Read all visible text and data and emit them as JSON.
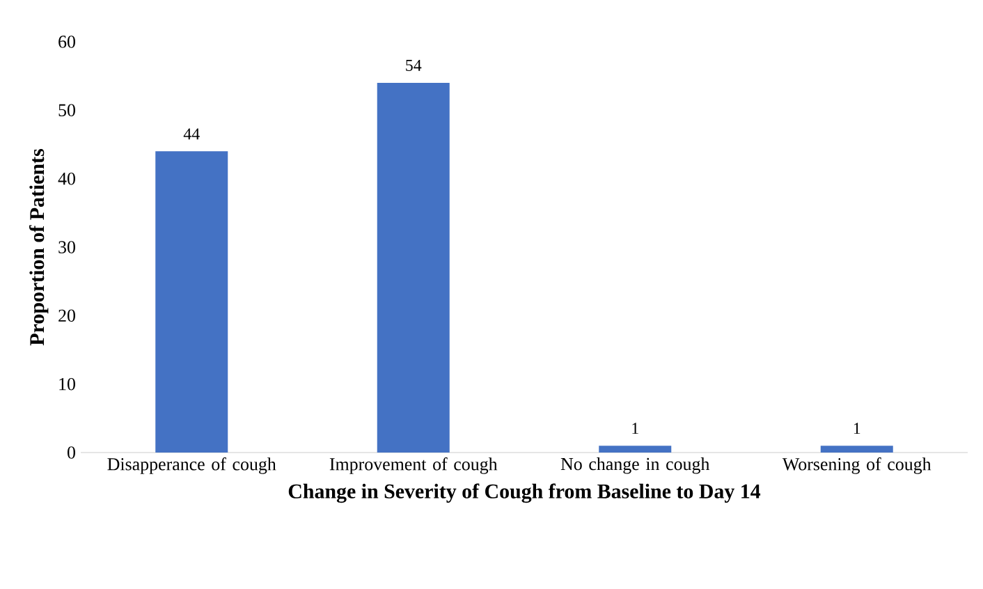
{
  "chart_data": {
    "type": "bar",
    "xlabel": "Change in Severity of Cough from Baseline to Day 14",
    "ylabel": "Proportion of Patients",
    "categories": [
      "Disapperance of cough",
      "Improvement of cough",
      "No change in cough",
      "Worsening of cough"
    ],
    "values": [
      44,
      54,
      1,
      1
    ],
    "color": "#4472c4",
    "ylim": [
      0,
      60
    ],
    "yticks": [
      0,
      10,
      20,
      30,
      40,
      50,
      60
    ],
    "grid": false,
    "data_labels": true
  }
}
